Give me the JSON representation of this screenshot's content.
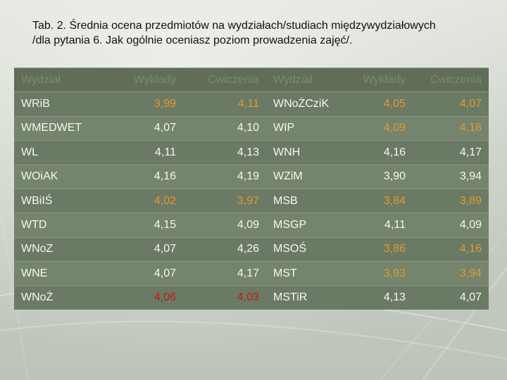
{
  "slide": {
    "title_line1": "Tab. 2. Średnia ocena przedmiotów na wydziałach/studiach międzywydziałowych",
    "title_line2": "/dla pytania 6. Jak ogólnie oceniasz poziom prowadzenia zajęć/."
  },
  "table": {
    "headers": [
      "Wydział",
      "Wykłady",
      "Ćwiczenia",
      "Wydział",
      "Wykłady",
      "Ćwiczenia"
    ],
    "rows": [
      [
        "WRiB",
        "3,99",
        "4,11",
        "WNoŻCziK",
        "4,05",
        "4,07"
      ],
      [
        "WMEDWET",
        "4,07",
        "4,10",
        "WIP",
        "4,09",
        "4,18"
      ],
      [
        "WL",
        "4,11",
        "4,13",
        "WNH",
        "4,16",
        "4,17"
      ],
      [
        "WOiAK",
        "4,16",
        "4,19",
        "WZiM",
        "3,90",
        "3,94"
      ],
      [
        "WBiIŚ",
        "4,02",
        "3,97",
        "MSB",
        "3,84",
        "3,89"
      ],
      [
        "WTD",
        "4,15",
        "4,09",
        "MSGP",
        "4,11",
        "4,09"
      ],
      [
        "WNoZ",
        "4,07",
        "4,26",
        "MSOŚ",
        "3,86",
        "4,16"
      ],
      [
        "WNE",
        "4,07",
        "4,17",
        "MST",
        "3,93",
        "3,94"
      ],
      [
        "WNoŻ",
        "4,06",
        "4,03",
        "MSTiR",
        "4,13",
        "4,07"
      ]
    ],
    "value_colors": {
      "orange": "#e39a2b",
      "red": "#c8170f",
      "white": "#f6f6f2"
    }
  }
}
